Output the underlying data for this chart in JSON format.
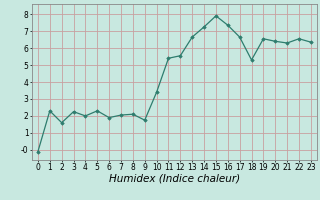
{
  "x": [
    0,
    1,
    2,
    3,
    4,
    5,
    6,
    7,
    8,
    9,
    10,
    11,
    12,
    13,
    14,
    15,
    16,
    17,
    18,
    19,
    20,
    21,
    22,
    23
  ],
  "y": [
    -0.1,
    2.3,
    1.6,
    2.25,
    2.0,
    2.3,
    1.9,
    2.05,
    2.1,
    1.75,
    3.4,
    5.4,
    5.55,
    6.65,
    7.25,
    7.9,
    7.35,
    6.65,
    5.3,
    6.55,
    6.4,
    6.3,
    6.55,
    6.35
  ],
  "line_color": "#2e7d6e",
  "marker": "D",
  "marker_size": 1.8,
  "line_width": 0.9,
  "xlabel": "Humidex (Indice chaleur)",
  "xlabel_style": "italic",
  "ylabel": "",
  "title": "",
  "xlim": [
    -0.5,
    23.5
  ],
  "ylim": [
    -0.6,
    8.6
  ],
  "yticks": [
    0,
    1,
    2,
    3,
    4,
    5,
    6,
    7,
    8
  ],
  "ytick_labels": [
    "-0",
    "1",
    "2",
    "3",
    "4",
    "5",
    "6",
    "7",
    "8"
  ],
  "xticks": [
    0,
    1,
    2,
    3,
    4,
    5,
    6,
    7,
    8,
    9,
    10,
    11,
    12,
    13,
    14,
    15,
    16,
    17,
    18,
    19,
    20,
    21,
    22,
    23
  ],
  "grid_color": "#c8a0a0",
  "bg_color": "#c8e8e0",
  "tick_label_fontsize": 5.5,
  "xlabel_fontsize": 7.5
}
